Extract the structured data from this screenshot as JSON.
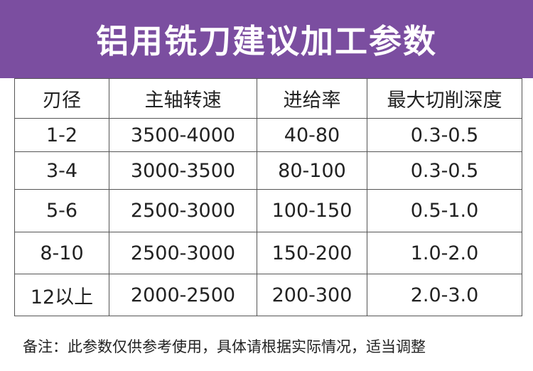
{
  "header": {
    "title": "铝用铣刀建议加工参数",
    "background_color": "#7b4ea0"
  },
  "table": {
    "headers": [
      "刃径",
      "主轴转速",
      "进给率",
      "最大切削深度"
    ],
    "rows": [
      [
        "1-2",
        "3500-4000",
        "40-80",
        "0.3-0.5"
      ],
      [
        "3-4",
        "3000-3500",
        "80-100",
        "0.3-0.5"
      ],
      [
        "5-6",
        "2500-3000",
        "100-150",
        "0.5-1.0"
      ],
      [
        "8-10",
        "2500-3000",
        "150-200",
        "1.0-2.0"
      ],
      [
        "12以上",
        "2000-2500",
        "200-300",
        "2.0-3.0"
      ]
    ]
  },
  "footer": {
    "note": "备注：此参数仅供参考使用，具体请根据实际情况，适当调整"
  }
}
